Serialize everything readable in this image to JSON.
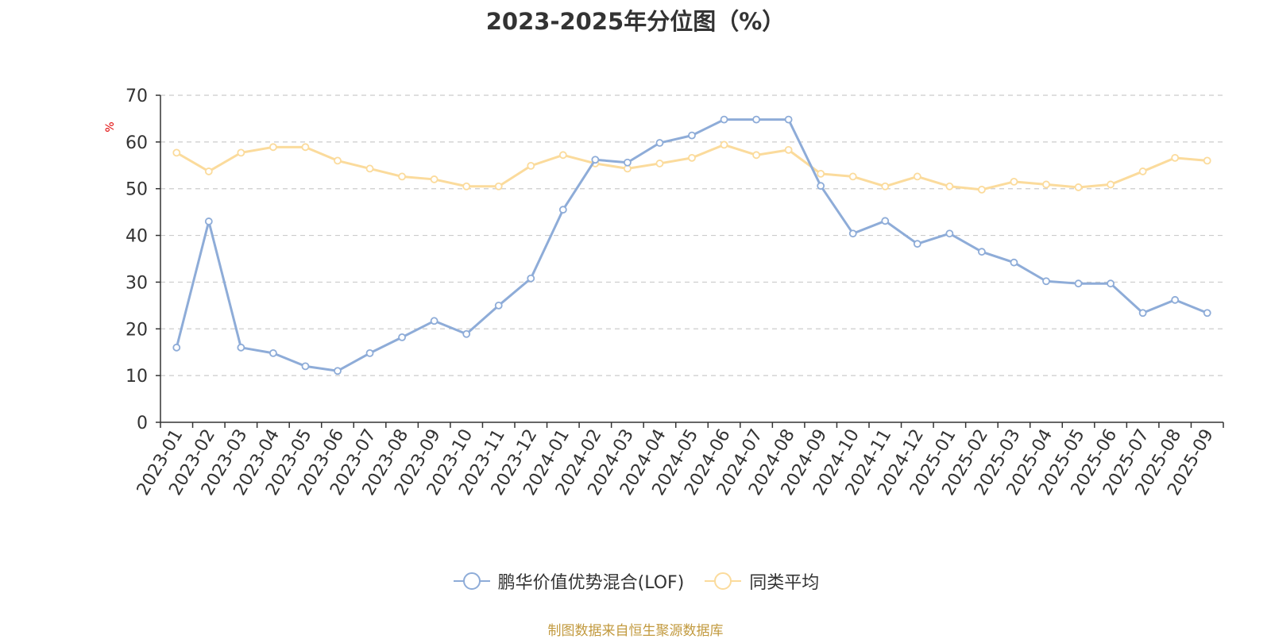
{
  "chart_data": {
    "type": "line",
    "title": "2023-2025年分位图（%）",
    "ylabel": "%",
    "ylim": [
      0,
      70
    ],
    "yticks": [
      0,
      10,
      20,
      30,
      40,
      50,
      60,
      70
    ],
    "grid": true,
    "legend_position": "bottom",
    "categories": [
      "2023-01",
      "2023-02",
      "2023-03",
      "2023-04",
      "2023-05",
      "2023-06",
      "2023-07",
      "2023-08",
      "2023-09",
      "2023-10",
      "2023-11",
      "2023-12",
      "2024-01",
      "2024-02",
      "2024-03",
      "2024-04",
      "2024-05",
      "2024-06",
      "2024-07",
      "2024-08",
      "2024-09",
      "2024-10",
      "2024-11",
      "2024-12",
      "2025-01",
      "2025-02",
      "2025-03",
      "2025-04",
      "2025-05",
      "2025-06",
      "2025-07",
      "2025-08",
      "2025-09"
    ],
    "series": [
      {
        "name": "鹏华价值优势混合(LOF)",
        "color": "#8eacd8",
        "values": [
          16.0,
          43.0,
          16.0,
          14.8,
          12.0,
          11.0,
          14.8,
          18.2,
          21.7,
          18.9,
          25.0,
          30.8,
          45.5,
          56.2,
          55.6,
          59.8,
          61.4,
          64.8,
          64.8,
          64.8,
          50.6,
          40.4,
          43.1,
          38.2,
          40.4,
          36.5,
          34.2,
          30.2,
          29.7,
          29.7,
          23.4,
          26.2,
          23.4
        ]
      },
      {
        "name": "同类平均",
        "color": "#fbdb9c",
        "values": [
          57.7,
          53.7,
          57.7,
          58.9,
          58.9,
          56.0,
          54.3,
          52.6,
          52.0,
          50.5,
          50.5,
          54.9,
          57.2,
          55.4,
          54.3,
          55.4,
          56.6,
          59.4,
          57.2,
          58.3,
          53.2,
          52.6,
          50.5,
          52.6,
          50.5,
          49.8,
          51.5,
          50.9,
          50.3,
          50.9,
          53.7,
          56.6,
          56.0
        ]
      }
    ]
  },
  "source_note": "制图数据来自恒生聚源数据库"
}
